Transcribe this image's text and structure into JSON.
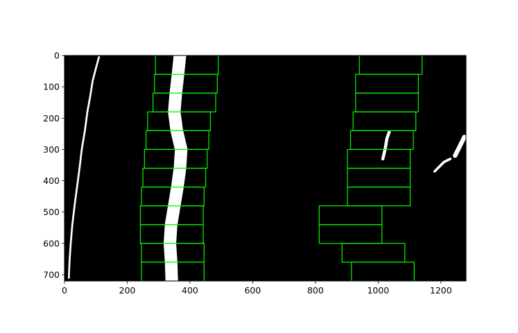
{
  "chart_data": {
    "type": "image",
    "title": "",
    "xlabel": "",
    "ylabel": "",
    "xlim": [
      0,
      1280
    ],
    "ylim": [
      720,
      0
    ],
    "x_ticks": [
      0,
      200,
      400,
      600,
      800,
      1000,
      1200
    ],
    "y_ticks": [
      0,
      100,
      200,
      300,
      400,
      500,
      600,
      700
    ],
    "colors": {
      "background": "#000000",
      "pixels": "#ffffff",
      "windows": "#00ff00"
    },
    "left_windows": [
      {
        "x1": 290,
        "x2": 490,
        "y1": 0,
        "y2": 60
      },
      {
        "x1": 287,
        "x2": 487,
        "y1": 60,
        "y2": 120
      },
      {
        "x1": 282,
        "x2": 482,
        "y1": 120,
        "y2": 180
      },
      {
        "x1": 265,
        "x2": 465,
        "y1": 180,
        "y2": 240
      },
      {
        "x1": 260,
        "x2": 460,
        "y1": 240,
        "y2": 300
      },
      {
        "x1": 255,
        "x2": 455,
        "y1": 300,
        "y2": 360
      },
      {
        "x1": 250,
        "x2": 450,
        "y1": 360,
        "y2": 420
      },
      {
        "x1": 245,
        "x2": 445,
        "y1": 420,
        "y2": 480
      },
      {
        "x1": 242,
        "x2": 442,
        "y1": 480,
        "y2": 540
      },
      {
        "x1": 242,
        "x2": 442,
        "y1": 540,
        "y2": 600
      },
      {
        "x1": 245,
        "x2": 445,
        "y1": 600,
        "y2": 660
      },
      {
        "x1": 245,
        "x2": 445,
        "y1": 660,
        "y2": 720
      }
    ],
    "right_windows": [
      {
        "x1": 940,
        "x2": 1140,
        "y1": 0,
        "y2": 60
      },
      {
        "x1": 928,
        "x2": 1128,
        "y1": 60,
        "y2": 120
      },
      {
        "x1": 928,
        "x2": 1128,
        "y1": 120,
        "y2": 180
      },
      {
        "x1": 920,
        "x2": 1120,
        "y1": 180,
        "y2": 240
      },
      {
        "x1": 912,
        "x2": 1112,
        "y1": 240,
        "y2": 300
      },
      {
        "x1": 902,
        "x2": 1102,
        "y1": 300,
        "y2": 360
      },
      {
        "x1": 902,
        "x2": 1102,
        "y1": 360,
        "y2": 420
      },
      {
        "x1": 902,
        "x2": 1102,
        "y1": 420,
        "y2": 480
      },
      {
        "x1": 812,
        "x2": 1012,
        "y1": 480,
        "y2": 540
      },
      {
        "x1": 812,
        "x2": 1012,
        "y1": 540,
        "y2": 600
      },
      {
        "x1": 885,
        "x2": 1085,
        "y1": 600,
        "y2": 660
      },
      {
        "x1": 915,
        "x2": 1115,
        "y1": 660,
        "y2": 720
      }
    ],
    "lane_strokes": [
      {
        "points": [
          [
            110,
            5
          ],
          [
            103,
            30
          ],
          [
            90,
            80
          ],
          [
            82,
            130
          ],
          [
            73,
            180
          ],
          [
            65,
            240
          ],
          [
            55,
            300
          ],
          [
            48,
            360
          ],
          [
            40,
            420
          ],
          [
            32,
            480
          ],
          [
            25,
            540
          ],
          [
            20,
            600
          ],
          [
            16,
            660
          ],
          [
            14,
            710
          ]
        ],
        "width": 6
      },
      {
        "points": [
          [
            368,
            0
          ],
          [
            362,
            60
          ],
          [
            355,
            120
          ],
          [
            350,
            180
          ],
          [
            358,
            240
          ],
          [
            372,
            300
          ],
          [
            368,
            360
          ],
          [
            360,
            420
          ],
          [
            350,
            480
          ],
          [
            340,
            540
          ],
          [
            336,
            600
          ],
          [
            340,
            660
          ],
          [
            342,
            720
          ]
        ],
        "width": 40
      },
      {
        "points": [
          [
            1015,
            330
          ],
          [
            1022,
            300
          ],
          [
            1028,
            265
          ],
          [
            1035,
            245
          ]
        ],
        "width": 10
      },
      {
        "points": [
          [
            1245,
            320
          ],
          [
            1260,
            290
          ],
          [
            1275,
            260
          ]
        ],
        "width": 14
      },
      {
        "points": [
          [
            1180,
            370
          ],
          [
            1210,
            340
          ],
          [
            1230,
            330
          ]
        ],
        "width": 8
      }
    ]
  }
}
